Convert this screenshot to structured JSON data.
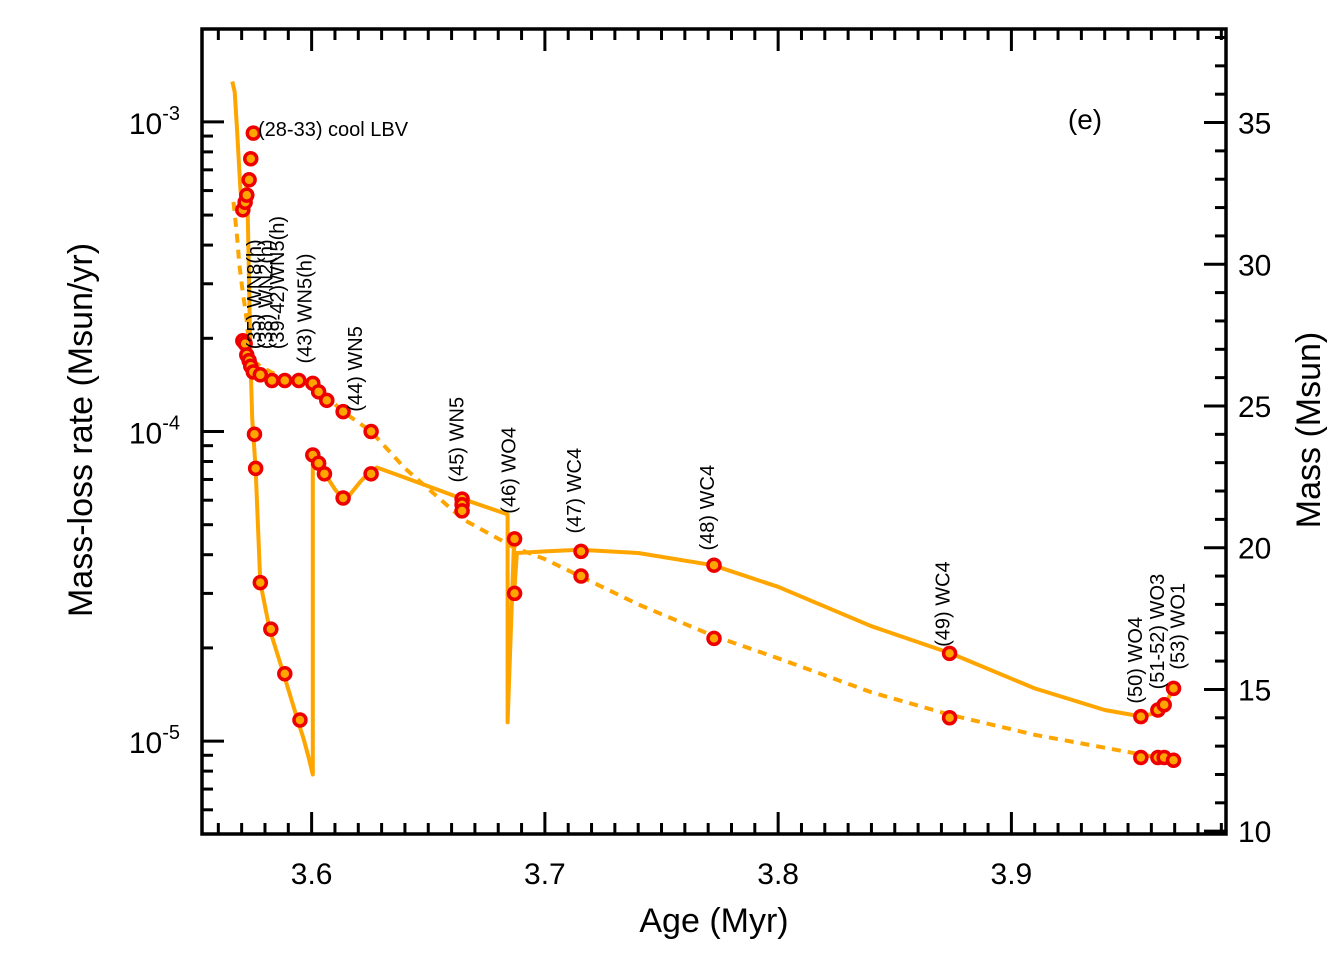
{
  "chart_data": {
    "type": "line",
    "panel_label": "(e)",
    "xlabel": "Age (Myr)",
    "ylabel_left": "Mass-loss rate (Msun/yr)",
    "ylabel_right": "Mass (Msun)",
    "xlim": [
      3.553,
      3.992
    ],
    "ylim_left_log10": [
      -5.3,
      -2.7
    ],
    "ylim_right": [
      9.9,
      38.3
    ],
    "left_axis_scale": "log",
    "grid": false,
    "x_ticks": [
      {
        "value": 3.6,
        "label": "3.6"
      },
      {
        "value": 3.7,
        "label": "3.7"
      },
      {
        "value": 3.8,
        "label": "3.8"
      },
      {
        "value": 3.9,
        "label": "3.9"
      }
    ],
    "y_left_ticks": [
      {
        "value": 0.001,
        "base": "10",
        "exp": "-3"
      },
      {
        "value": 0.0001,
        "base": "10",
        "exp": "-4"
      },
      {
        "value": 1e-05,
        "base": "10",
        "exp": "-5"
      }
    ],
    "y_right_ticks": [
      {
        "value": 35,
        "label": "35"
      },
      {
        "value": 30,
        "label": "30"
      },
      {
        "value": 25,
        "label": "25"
      },
      {
        "value": 20,
        "label": "20"
      },
      {
        "value": 15,
        "label": "15"
      },
      {
        "value": 10,
        "label": "10"
      }
    ],
    "series": [
      {
        "name": "Mass-loss rate",
        "axis": "left",
        "style": "solid",
        "color": "#FFA500",
        "x": [
          3.566,
          3.567,
          3.568,
          3.569,
          3.5695,
          3.5705,
          3.5715,
          3.572,
          3.5722,
          3.5725,
          3.573,
          3.5735,
          3.574,
          3.5745,
          3.575,
          3.576,
          3.578,
          3.582,
          3.588,
          3.594,
          3.5965,
          3.5985,
          3.6005,
          3.6005,
          3.6008,
          3.603,
          3.6055,
          3.61,
          3.613,
          3.616,
          3.621,
          3.625,
          3.628,
          3.64,
          3.665,
          3.684,
          3.684,
          3.6868,
          3.6868,
          3.688,
          3.7,
          3.715,
          3.74,
          3.772,
          3.8,
          3.84,
          3.874,
          3.91,
          3.94,
          3.956,
          3.9628,
          3.9655,
          3.9695
        ],
        "y": [
          0.00135,
          0.00125,
          0.00095,
          0.0007,
          0.0006,
          0.00052,
          0.00052,
          0.00062,
          0.00062,
          0.00055,
          0.00035,
          0.00022,
          0.00015,
          0.00011,
          9.8e-05,
          7.6e-05,
          3.25e-05,
          2.3e-05,
          1.65e-05,
          1.17e-05,
          1.02e-05,
          9e-06,
          7.8e-06,
          7.8e-05,
          8.4e-05,
          8e-05,
          7.35e-05,
          6.5e-05,
          6.1e-05,
          6.2e-05,
          6.9e-05,
          7.4e-05,
          7.65e-05,
          7.1e-05,
          6.05e-05,
          5.4e-05,
          1.15e-05,
          4.5e-05,
          3e-05,
          4.05e-05,
          4.1e-05,
          4.15e-05,
          4.05e-05,
          3.7e-05,
          3.15e-05,
          2.35e-05,
          1.92e-05,
          1.48e-05,
          1.26e-05,
          1.2e-05,
          1.24e-05,
          1.3e-05,
          1.48e-05
        ]
      },
      {
        "name": "Mass",
        "axis": "right",
        "style": "dashed",
        "color": "#FFA500",
        "x": [
          3.5665,
          3.568,
          3.569,
          3.5705,
          3.5712,
          3.5722,
          3.5725,
          3.5732,
          3.5739,
          3.575,
          3.578,
          3.5825,
          3.5875,
          3.592,
          3.5965,
          3.6005,
          3.603,
          3.6055,
          3.6135,
          3.6255,
          3.64,
          3.665,
          3.687,
          3.7,
          3.715,
          3.74,
          3.772,
          3.8,
          3.84,
          3.874,
          3.91,
          3.956,
          3.9628,
          3.9655,
          3.9695
        ],
        "y": [
          32.2,
          31.0,
          30.0,
          29.0,
          28.6,
          28.0,
          27.7,
          27.2,
          26.8,
          26.6,
          26.4,
          26.2,
          26.0,
          25.9,
          25.9,
          25.8,
          25.6,
          25.4,
          24.8,
          24.1,
          22.8,
          21.0,
          20.0,
          19.6,
          19.0,
          18.0,
          16.9,
          16.1,
          14.9,
          14.1,
          13.4,
          12.7,
          12.6,
          12.6,
          12.5
        ]
      }
    ],
    "markers": [
      {
        "axis": "left",
        "points": [
          [
            3.5705,
            0.00052
          ],
          [
            3.5715,
            0.00055
          ],
          [
            3.5722,
            0.00058
          ],
          [
            3.5732,
            0.00065
          ],
          [
            3.5739,
            0.00076
          ],
          [
            3.575,
            0.00092
          ],
          [
            3.5755,
            9.8e-05
          ],
          [
            3.576,
            7.6e-05
          ],
          [
            3.578,
            3.25e-05
          ],
          [
            3.5825,
            2.3e-05
          ],
          [
            3.5885,
            1.65e-05
          ],
          [
            3.595,
            1.17e-05
          ],
          [
            3.6005,
            8.4e-05
          ],
          [
            3.603,
            7.9e-05
          ],
          [
            3.6055,
            7.3e-05
          ],
          [
            3.6135,
            6.1e-05
          ],
          [
            3.6255,
            7.3e-05
          ],
          [
            3.6645,
            6.05e-05
          ],
          [
            3.6645,
            5.8e-05
          ],
          [
            3.687,
            4.5e-05
          ],
          [
            3.687,
            3e-05
          ],
          [
            3.7155,
            4.1e-05
          ],
          [
            3.7725,
            3.7e-05
          ],
          [
            3.8735,
            1.92e-05
          ],
          [
            3.9555,
            1.2e-05
          ],
          [
            3.9628,
            1.26e-05
          ],
          [
            3.9655,
            1.31e-05
          ],
          [
            3.9695,
            1.48e-05
          ]
        ]
      },
      {
        "axis": "right",
        "points": [
          [
            3.5705,
            27.3
          ],
          [
            3.5715,
            27.2
          ],
          [
            3.5722,
            26.8
          ],
          [
            3.5732,
            26.6
          ],
          [
            3.5739,
            26.4
          ],
          [
            3.575,
            26.2
          ],
          [
            3.578,
            26.1
          ],
          [
            3.583,
            25.9
          ],
          [
            3.5885,
            25.9
          ],
          [
            3.5945,
            25.9
          ],
          [
            3.6005,
            25.8
          ],
          [
            3.603,
            25.5
          ],
          [
            3.6065,
            25.2
          ],
          [
            3.6135,
            24.8
          ],
          [
            3.6255,
            24.1
          ],
          [
            3.6645,
            21.3
          ],
          [
            3.7155,
            19.0
          ],
          [
            3.7725,
            16.8
          ],
          [
            3.8735,
            14.0
          ],
          [
            3.9555,
            12.6
          ],
          [
            3.9628,
            12.6
          ],
          [
            3.9655,
            12.6
          ],
          [
            3.9695,
            12.5
          ]
        ]
      }
    ],
    "annotations": [
      {
        "text": "(28-33) cool LBV",
        "x": 3.577,
        "y": 0.00095,
        "axis": "left",
        "rotation": 0
      },
      {
        "text": "(35) WN8(h)",
        "x": 3.5782,
        "y": 27.0,
        "axis": "right",
        "rotation": -90
      },
      {
        "text": "(38) WN2(h)",
        "x": 3.5832,
        "y": 27.0,
        "axis": "right",
        "rotation": -90
      },
      {
        "text": "(39-42)WN5(h)",
        "x": 3.5882,
        "y": 27.0,
        "axis": "right",
        "rotation": -90
      },
      {
        "text": "(43) WN5(h)",
        "x": 3.6,
        "y": 26.5,
        "axis": "right",
        "rotation": -90
      },
      {
        "text": "(44) WN5",
        "x": 3.6215,
        "y": 24.8,
        "axis": "right",
        "rotation": -90
      },
      {
        "text": "(45) WN5",
        "x": 3.6652,
        "y": 22.3,
        "axis": "right",
        "rotation": -90
      },
      {
        "text": "(46) WO4",
        "x": 3.6875,
        "y": 21.2,
        "axis": "right",
        "rotation": -90
      },
      {
        "text": "(47) WC4",
        "x": 3.7155,
        "y": 20.5,
        "axis": "right",
        "rotation": -90
      },
      {
        "text": "(48) WC4",
        "x": 3.7725,
        "y": 19.9,
        "axis": "right",
        "rotation": -90
      },
      {
        "text": "(49) WC4",
        "x": 3.8735,
        "y": 16.5,
        "axis": "right",
        "rotation": -90
      },
      {
        "text": "(50) WO4",
        "x": 3.956,
        "y": 14.5,
        "axis": "right",
        "rotation": -90
      },
      {
        "text": "(51-52) WO3",
        "x": 3.9655,
        "y": 15.0,
        "axis": "right",
        "rotation": -90
      },
      {
        "text": "(53) WO1",
        "x": 3.9742,
        "y": 15.7,
        "axis": "right",
        "rotation": -90
      }
    ]
  }
}
